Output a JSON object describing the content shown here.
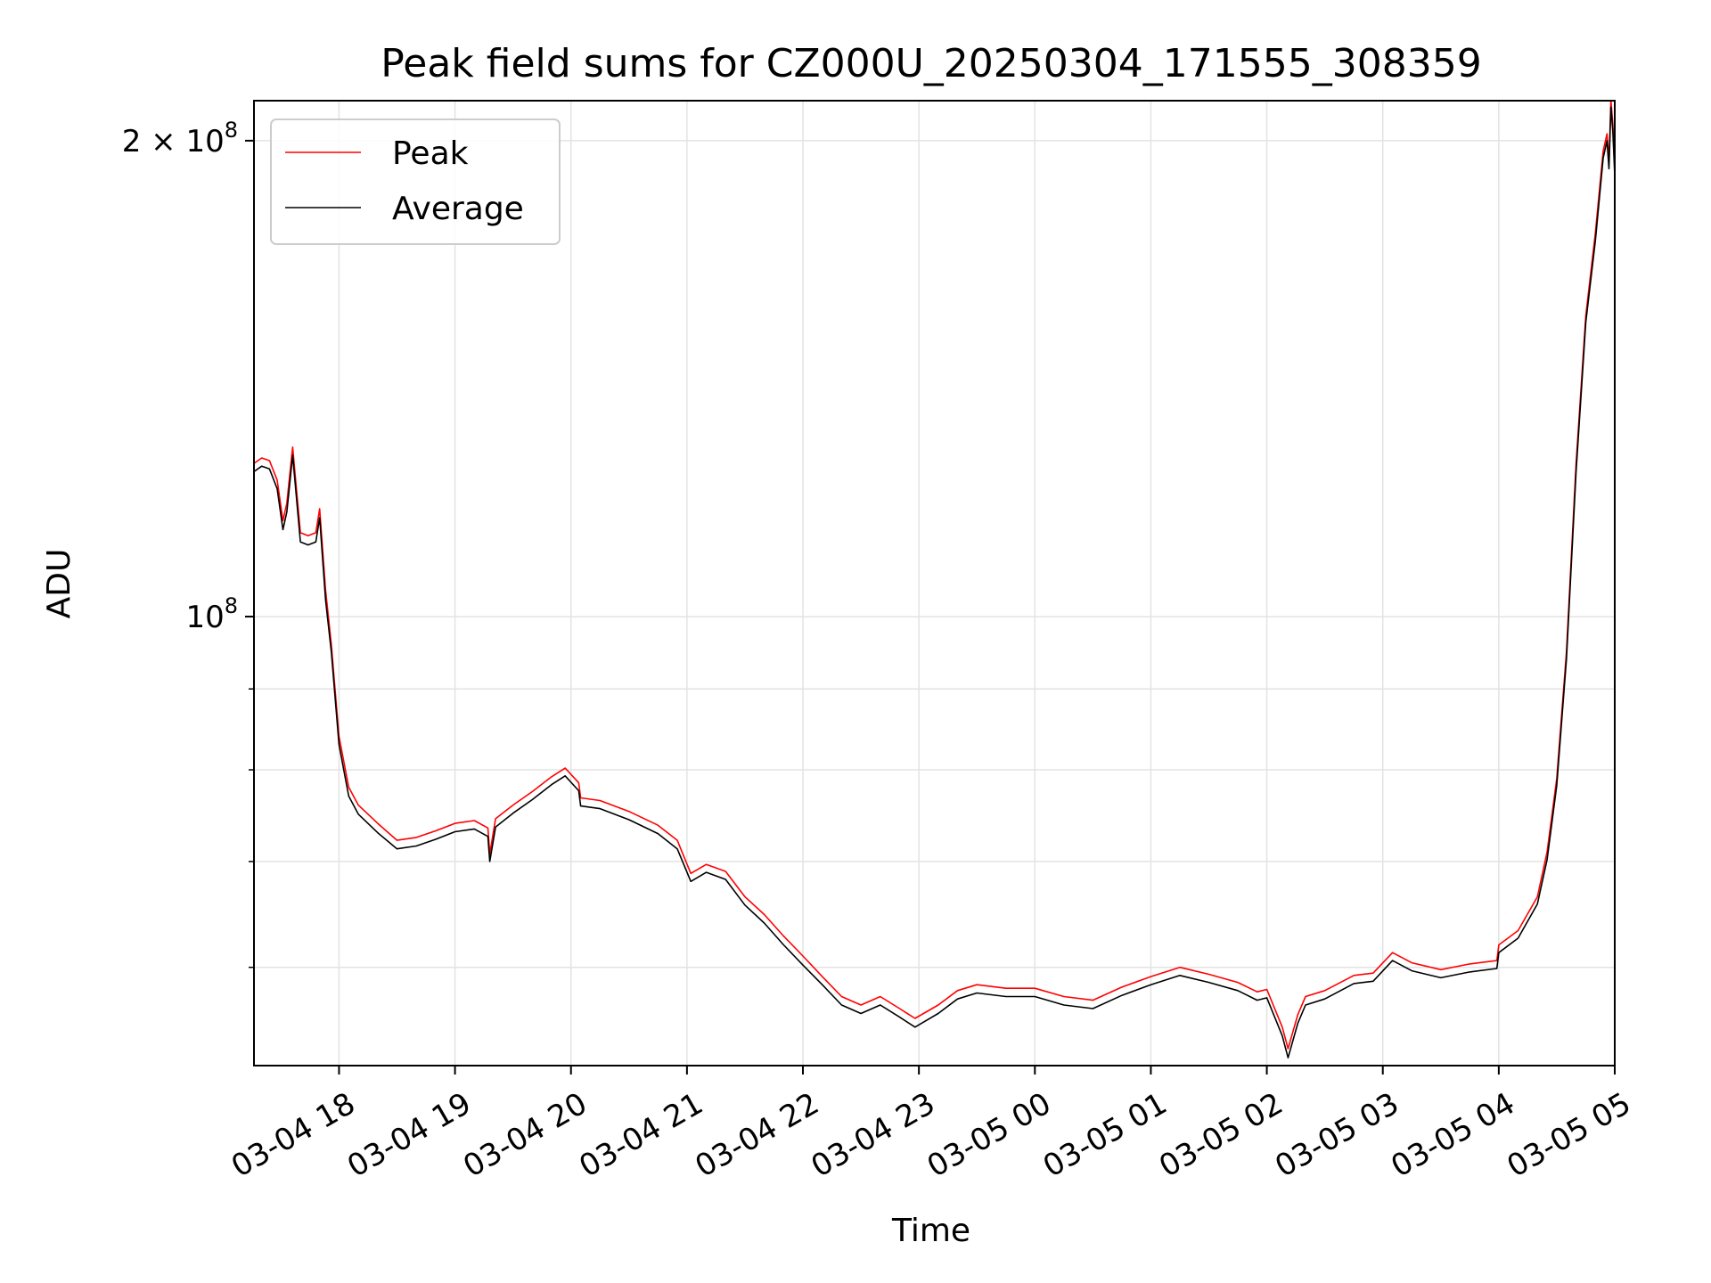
{
  "chart_data": {
    "type": "line",
    "title": "Peak field sums for CZ000U_20250304_171555_308359",
    "xlabel": "Time",
    "ylabel": "ADU",
    "y_scale": "log",
    "ylim": [
      52000000,
      212000000
    ],
    "xlim": [
      "2025-03-04 17:16",
      "2025-03-05 05:00"
    ],
    "grid": true,
    "legend_position": "upper-left",
    "x_ticks": [
      {
        "t": "2025-03-04 18:00",
        "label": "03-04 18"
      },
      {
        "t": "2025-03-04 19:00",
        "label": "03-04 19"
      },
      {
        "t": "2025-03-04 20:00",
        "label": "03-04 20"
      },
      {
        "t": "2025-03-04 21:00",
        "label": "03-04 21"
      },
      {
        "t": "2025-03-04 22:00",
        "label": "03-04 22"
      },
      {
        "t": "2025-03-04 23:00",
        "label": "03-04 23"
      },
      {
        "t": "2025-03-05 00:00",
        "label": "03-05 00"
      },
      {
        "t": "2025-03-05 01:00",
        "label": "03-05 01"
      },
      {
        "t": "2025-03-05 02:00",
        "label": "03-05 02"
      },
      {
        "t": "2025-03-05 03:00",
        "label": "03-05 03"
      },
      {
        "t": "2025-03-05 04:00",
        "label": "03-05 04"
      },
      {
        "t": "2025-03-05 05:00",
        "label": "03-05 05"
      }
    ],
    "y_major_ticks": [
      {
        "value": 100000000,
        "mantissa": "",
        "base": "10",
        "exp": "8"
      },
      {
        "value": 200000000,
        "mantissa": "2 × ",
        "base": "10",
        "exp": "8"
      }
    ],
    "y_minor_ticks": [
      60000000,
      70000000,
      80000000,
      90000000
    ],
    "series": [
      {
        "name": "Peak",
        "color": "#ff0000",
        "x": [
          "2025-03-04 17:16",
          "2025-03-04 17:20",
          "2025-03-04 17:24",
          "2025-03-04 17:28",
          "2025-03-04 17:31",
          "2025-03-04 17:33",
          "2025-03-04 17:36",
          "2025-03-04 17:40",
          "2025-03-04 17:44",
          "2025-03-04 17:48",
          "2025-03-04 17:50",
          "2025-03-04 17:53",
          "2025-03-04 17:56",
          "2025-03-04 18:00",
          "2025-03-04 18:05",
          "2025-03-04 18:10",
          "2025-03-04 18:20",
          "2025-03-04 18:30",
          "2025-03-04 18:40",
          "2025-03-04 18:50",
          "2025-03-04 19:00",
          "2025-03-04 19:10",
          "2025-03-04 19:17",
          "2025-03-04 19:18",
          "2025-03-04 19:21",
          "2025-03-04 19:30",
          "2025-03-04 19:40",
          "2025-03-04 19:50",
          "2025-03-04 19:57",
          "2025-03-04 20:04",
          "2025-03-04 20:05",
          "2025-03-04 20:15",
          "2025-03-04 20:30",
          "2025-03-04 20:45",
          "2025-03-04 20:55",
          "2025-03-04 21:02",
          "2025-03-04 21:10",
          "2025-03-04 21:20",
          "2025-03-04 21:30",
          "2025-03-04 21:40",
          "2025-03-04 21:50",
          "2025-03-04 22:00",
          "2025-03-04 22:10",
          "2025-03-04 22:20",
          "2025-03-04 22:30",
          "2025-03-04 22:40",
          "2025-03-04 22:50",
          "2025-03-04 22:58",
          "2025-03-04 23:10",
          "2025-03-04 23:20",
          "2025-03-04 23:30",
          "2025-03-04 23:45",
          "2025-03-05 00:00",
          "2025-03-05 00:15",
          "2025-03-05 00:30",
          "2025-03-05 00:45",
          "2025-03-05 01:00",
          "2025-03-05 01:15",
          "2025-03-05 01:30",
          "2025-03-05 01:45",
          "2025-03-05 01:55",
          "2025-03-05 02:00",
          "2025-03-05 02:08",
          "2025-03-05 02:11",
          "2025-03-05 02:16",
          "2025-03-05 02:20",
          "2025-03-05 02:30",
          "2025-03-05 02:45",
          "2025-03-05 02:55",
          "2025-03-05 03:05",
          "2025-03-05 03:15",
          "2025-03-05 03:30",
          "2025-03-05 03:45",
          "2025-03-05 03:59",
          "2025-03-05 04:00",
          "2025-03-05 04:10",
          "2025-03-05 04:20",
          "2025-03-05 04:25",
          "2025-03-05 04:30",
          "2025-03-05 04:35",
          "2025-03-05 04:40",
          "2025-03-05 04:45",
          "2025-03-05 04:50",
          "2025-03-05 04:54",
          "2025-03-05 04:56",
          "2025-03-05 04:57",
          "2025-03-05 04:58",
          "2025-03-05 04:59",
          "2025-03-05 05:00"
        ],
        "y": [
          125000000,
          126000000,
          125500000,
          122000000,
          115000000,
          118000000,
          128000000,
          113000000,
          112500000,
          113000000,
          117000000,
          104000000,
          96000000,
          84000000,
          78000000,
          76000000,
          74000000,
          72200000,
          72500000,
          73200000,
          74000000,
          74300000,
          73500000,
          70800000,
          74500000,
          76000000,
          77500000,
          79200000,
          80200000,
          78500000,
          76800000,
          76500000,
          75300000,
          73800000,
          72200000,
          68800000,
          69700000,
          69000000,
          66500000,
          64800000,
          62800000,
          61000000,
          59200000,
          57500000,
          56800000,
          57500000,
          56500000,
          55700000,
          56800000,
          58000000,
          58500000,
          58200000,
          58200000,
          57500000,
          57200000,
          58300000,
          59200000,
          60000000,
          59400000,
          58700000,
          57900000,
          58100000,
          55000000,
          53300000,
          56000000,
          57500000,
          58000000,
          59300000,
          59500000,
          61300000,
          60400000,
          59800000,
          60300000,
          60600000,
          62000000,
          63300000,
          66500000,
          71000000,
          79000000,
          95000000,
          125000000,
          155000000,
          175000000,
          197000000,
          202000000,
          194000000,
          212000000,
          205000000,
          192000000
        ]
      },
      {
        "name": "Average",
        "color": "#000000",
        "x": [
          "2025-03-04 17:16",
          "2025-03-04 17:20",
          "2025-03-04 17:24",
          "2025-03-04 17:28",
          "2025-03-04 17:31",
          "2025-03-04 17:33",
          "2025-03-04 17:36",
          "2025-03-04 17:40",
          "2025-03-04 17:44",
          "2025-03-04 17:48",
          "2025-03-04 17:50",
          "2025-03-04 17:53",
          "2025-03-04 17:56",
          "2025-03-04 18:00",
          "2025-03-04 18:05",
          "2025-03-04 18:10",
          "2025-03-04 18:20",
          "2025-03-04 18:30",
          "2025-03-04 18:40",
          "2025-03-04 18:50",
          "2025-03-04 19:00",
          "2025-03-04 19:10",
          "2025-03-04 19:17",
          "2025-03-04 19:18",
          "2025-03-04 19:21",
          "2025-03-04 19:30",
          "2025-03-04 19:40",
          "2025-03-04 19:50",
          "2025-03-04 19:57",
          "2025-03-04 20:04",
          "2025-03-04 20:05",
          "2025-03-04 20:15",
          "2025-03-04 20:30",
          "2025-03-04 20:45",
          "2025-03-04 20:55",
          "2025-03-04 21:02",
          "2025-03-04 21:10",
          "2025-03-04 21:20",
          "2025-03-04 21:30",
          "2025-03-04 21:40",
          "2025-03-04 21:50",
          "2025-03-04 22:00",
          "2025-03-04 22:10",
          "2025-03-04 22:20",
          "2025-03-04 22:30",
          "2025-03-04 22:40",
          "2025-03-04 22:50",
          "2025-03-04 22:58",
          "2025-03-04 23:10",
          "2025-03-04 23:20",
          "2025-03-04 23:30",
          "2025-03-04 23:45",
          "2025-03-05 00:00",
          "2025-03-05 00:15",
          "2025-03-05 00:30",
          "2025-03-05 00:45",
          "2025-03-05 01:00",
          "2025-03-05 01:15",
          "2025-03-05 01:30",
          "2025-03-05 01:45",
          "2025-03-05 01:55",
          "2025-03-05 02:00",
          "2025-03-05 02:08",
          "2025-03-05 02:11",
          "2025-03-05 02:16",
          "2025-03-05 02:20",
          "2025-03-05 02:30",
          "2025-03-05 02:45",
          "2025-03-05 02:55",
          "2025-03-05 03:05",
          "2025-03-05 03:15",
          "2025-03-05 03:30",
          "2025-03-05 03:45",
          "2025-03-05 03:59",
          "2025-03-05 04:00",
          "2025-03-05 04:10",
          "2025-03-05 04:20",
          "2025-03-05 04:25",
          "2025-03-05 04:30",
          "2025-03-05 04:35",
          "2025-03-05 04:40",
          "2025-03-05 04:45",
          "2025-03-05 04:50",
          "2025-03-05 04:54",
          "2025-03-05 04:56",
          "2025-03-05 04:57",
          "2025-03-05 04:58",
          "2025-03-05 04:59",
          "2025-03-05 05:00"
        ],
        "y": [
          123500000,
          124500000,
          124000000,
          120500000,
          113500000,
          116500000,
          126500000,
          111500000,
          111000000,
          111500000,
          115500000,
          102500000,
          95000000,
          83000000,
          77000000,
          75000000,
          73000000,
          71300000,
          71600000,
          72300000,
          73100000,
          73400000,
          72600000,
          70000000,
          73600000,
          75100000,
          76600000,
          78300000,
          79300000,
          77600000,
          75900000,
          75600000,
          74400000,
          72900000,
          71300000,
          68000000,
          68900000,
          68200000,
          65700000,
          64000000,
          62000000,
          60200000,
          58500000,
          56800000,
          56100000,
          56800000,
          55800000,
          55000000,
          56100000,
          57300000,
          57800000,
          57500000,
          57500000,
          56800000,
          56500000,
          57600000,
          58500000,
          59300000,
          58700000,
          58000000,
          57200000,
          57400000,
          54300000,
          52600000,
          55300000,
          56800000,
          57300000,
          58600000,
          58800000,
          60600000,
          59700000,
          59100000,
          59600000,
          59900000,
          61300000,
          62600000,
          65800000,
          70200000,
          78200000,
          94000000,
          123500000,
          153500000,
          173000000,
          195000000,
          200000000,
          192000000,
          210000000,
          203000000,
          190000000
        ]
      }
    ]
  }
}
